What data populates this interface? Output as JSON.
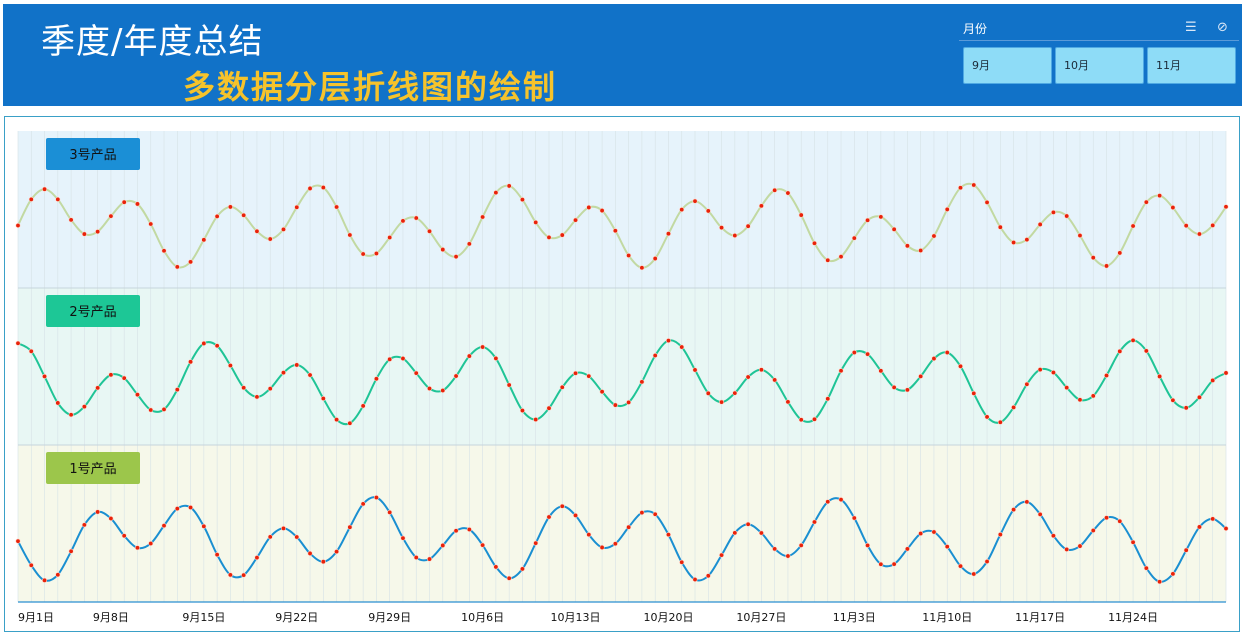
{
  "header": {
    "title": "季度/年度总结",
    "subtitle": "多数据分层折线图的绘制"
  },
  "slicer": {
    "title": "月份",
    "multiselect_icon": "multiselect-icon",
    "clear_icon": "clear-filter-icon",
    "options": [
      "9月",
      "10月",
      "11月"
    ]
  },
  "colors": {
    "header_bg": "#1172c8",
    "subtitle": "#f6c32b",
    "slicer_button": "#8edcf7",
    "marker": "#e8220a"
  },
  "chart_data": {
    "type": "line",
    "layout": "stacked-panels",
    "x_tick_labels": [
      "9月1日",
      "9月8日",
      "9月15日",
      "9月22日",
      "9月29日",
      "10月6日",
      "10月13日",
      "10月20日",
      "10月27日",
      "11月3日",
      "11月10日",
      "11月17日",
      "11月24日"
    ],
    "grid": "vertical-daily",
    "markers": true,
    "panels": [
      {
        "label": "3号产品",
        "label_color": "#1b8fd6",
        "line_color": "#c2d9a2",
        "band_color": "#e6f3fb"
      },
      {
        "label": "2号产品",
        "label_color": "#1dc796",
        "line_color": "#1fc496",
        "band_color": "#e8f7f4"
      },
      {
        "label": "1号产品",
        "label_color": "#9cc64b",
        "line_color": "#1a8fd1",
        "band_color": "#f6f8ea"
      }
    ]
  }
}
